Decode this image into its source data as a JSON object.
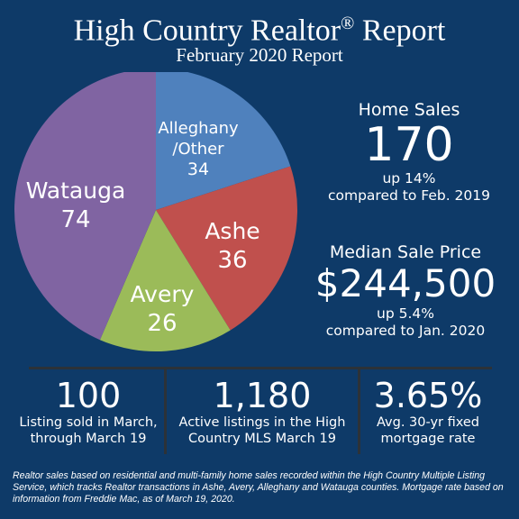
{
  "header": {
    "title": "High Country Realtor",
    "title_mark": "®",
    "title_suffix": "Report",
    "subtitle": "February 2020 Report"
  },
  "chart_data": {
    "type": "pie",
    "start_angle_deg": 0,
    "direction": "clockwise",
    "slices": [
      {
        "label_lines": [
          "Alleghany",
          "/Other"
        ],
        "value": 34,
        "color": "#4f81bd"
      },
      {
        "label_lines": [
          "Ashe"
        ],
        "value": 36,
        "color": "#c0504d"
      },
      {
        "label_lines": [
          "Avery"
        ],
        "value": 26,
        "color": "#9bbb59"
      },
      {
        "label_lines": [
          "Watauga"
        ],
        "value": 74,
        "color": "#8064a2"
      }
    ]
  },
  "home_sales": {
    "heading": "Home Sales",
    "value": "170",
    "change": "up 14%",
    "comparison": "compared to Feb. 2019"
  },
  "median_price": {
    "heading": "Median Sale Price",
    "value": "$244,500",
    "change": "up 5.4%",
    "comparison": "compared to Jan. 2020"
  },
  "bottom_stats": [
    {
      "value": "100",
      "line1": "Listing sold in March,",
      "line2": "through March 19"
    },
    {
      "value": "1,180",
      "line1": "Active listings in the High",
      "line2": "Country MLS March 19"
    },
    {
      "value": "3.65%",
      "line1": "Avg. 30-yr fixed",
      "line2": "mortgage rate"
    }
  ],
  "footnote": "Realtor sales based on residential and multi-family home sales recorded within the High Country Multiple Listing Service, which tracks Realtor transactions in Ashe, Avery, Alleghany and Watauga counties. Mortgage rate based on information from Freddie Mac, as of March 19, 2020."
}
